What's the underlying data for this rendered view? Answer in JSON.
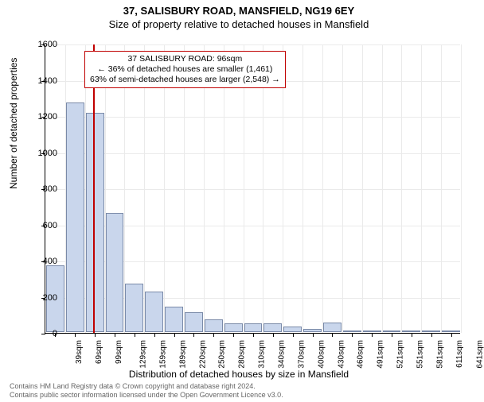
{
  "title_line1": "37, SALISBURY ROAD, MANSFIELD, NG19 6EY",
  "title_line2": "Size of property relative to detached houses in Mansfield",
  "ylabel": "Number of detached properties",
  "xlabel": "Distribution of detached houses by size in Mansfield",
  "chart": {
    "type": "histogram",
    "ylim": [
      0,
      1600
    ],
    "ytick_step": 200,
    "background_color": "#ffffff",
    "grid_color": "#eaeaea",
    "bar_fill": "#c9d6ec",
    "bar_border": "#7a8aa8",
    "marker_color": "#c00000",
    "marker_x_value": 96,
    "x_categories": [
      "39sqm",
      "69sqm",
      "99sqm",
      "129sqm",
      "159sqm",
      "189sqm",
      "220sqm",
      "250sqm",
      "280sqm",
      "310sqm",
      "340sqm",
      "370sqm",
      "400sqm",
      "430sqm",
      "460sqm",
      "491sqm",
      "521sqm",
      "551sqm",
      "581sqm",
      "611sqm",
      "641sqm"
    ],
    "values": [
      370,
      1270,
      1215,
      660,
      270,
      225,
      140,
      110,
      70,
      50,
      50,
      50,
      30,
      18,
      52,
      10,
      8,
      5,
      5,
      5,
      5
    ],
    "label_fontsize": 12,
    "tick_fontsize": 11
  },
  "annotation": {
    "line1": "37 SALISBURY ROAD: 96sqm",
    "line2": "← 36% of detached houses are smaller (1,461)",
    "line3": "63% of semi-detached houses are larger (2,548) →",
    "border_color": "#c00000"
  },
  "footer": {
    "line1": "Contains HM Land Registry data © Crown copyright and database right 2024.",
    "line2": "Contains public sector information licensed under the Open Government Licence v3.0."
  }
}
